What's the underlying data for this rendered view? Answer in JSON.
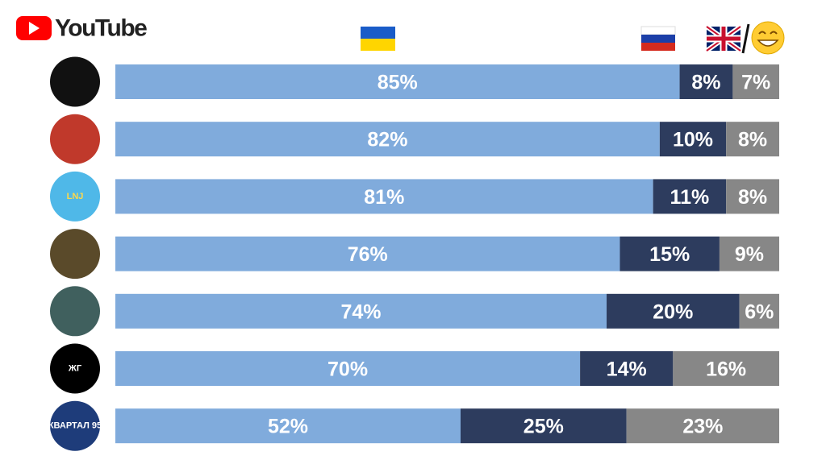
{
  "logo": "YouTube",
  "chart_data": {
    "type": "stacked-bar-horizontal",
    "categories": [
      null,
      null,
      "LNJ",
      null,
      null,
      "ЖГ",
      "КВАРТАЛ 95"
    ],
    "xlim": [
      0,
      100
    ],
    "series": [
      {
        "color": "#80abdc",
        "values": [
          85,
          82,
          81,
          76,
          74,
          70,
          52
        ],
        "value_labels": [
          "85%",
          "82%",
          "81%",
          "76%",
          "74%",
          "70%",
          "52%"
        ]
      },
      {
        "color": "#2d3c5e",
        "values": [
          8,
          10,
          11,
          15,
          20,
          14,
          25
        ],
        "value_labels": [
          "8%",
          "10%",
          "11%",
          "15%",
          "20%",
          "14%",
          "25%"
        ]
      },
      {
        "color": "#878787",
        "values": [
          7,
          8,
          8,
          9,
          6,
          16,
          23
        ],
        "value_labels": [
          "7%",
          "8%",
          "8%",
          "9%",
          "6%",
          "16%",
          "23%"
        ]
      }
    ]
  }
}
